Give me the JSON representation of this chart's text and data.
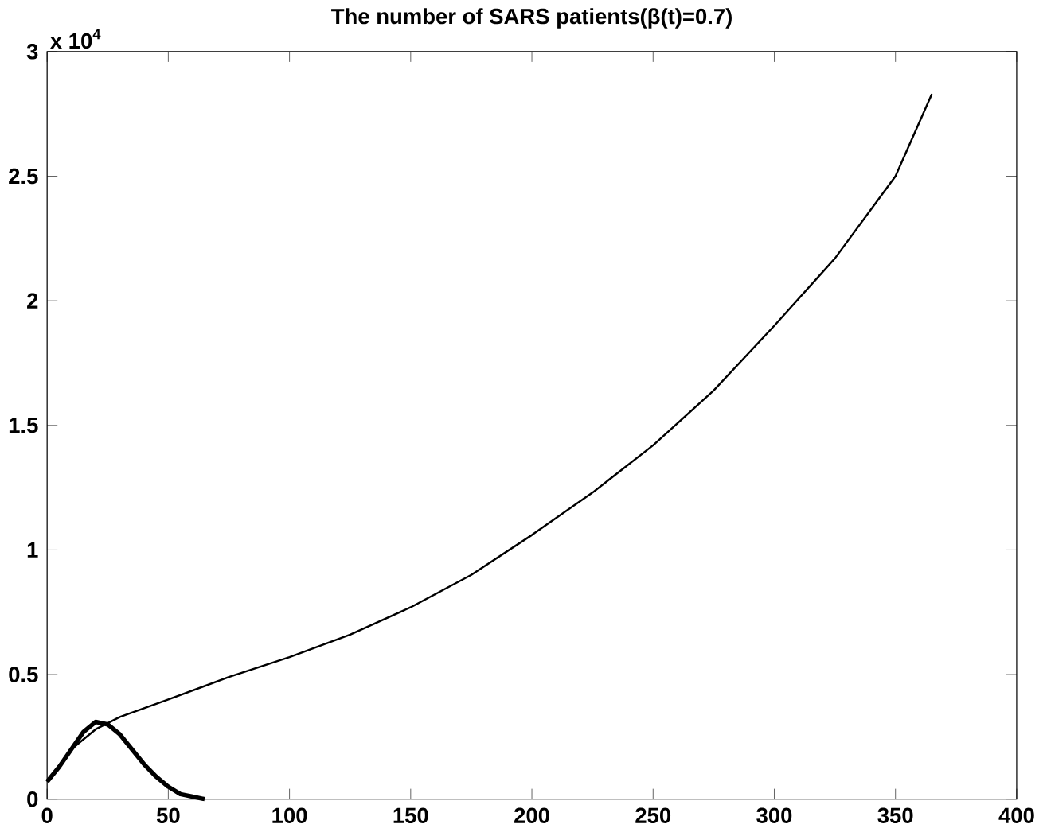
{
  "chart_data": {
    "type": "line",
    "title": "The number of SARS patients(β(t)=0.7)",
    "annotations": [
      "x 10$^{4}$"
    ],
    "xlim": [
      0,
      400
    ],
    "xticks": [
      0,
      50,
      100,
      150,
      200,
      250,
      300,
      350,
      400
    ],
    "ylim": [
      0,
      3
    ],
    "yticks": [
      0,
      0.5,
      1,
      1.5,
      2,
      2.5,
      3
    ],
    "grid": false,
    "line_style": "solid",
    "marker": "none",
    "series": [
      {
        "color": "#000000",
        "x": [
          0,
          10,
          20,
          30,
          50,
          75,
          100,
          125,
          150,
          175,
          200,
          225,
          250,
          275,
          300,
          325,
          350,
          365
        ],
        "values": [
          0.07,
          0.2,
          0.28,
          0.33,
          0.4,
          0.49,
          0.57,
          0.66,
          0.77,
          0.9,
          1.06,
          1.23,
          1.42,
          1.64,
          1.9,
          2.17,
          2.5,
          2.83
        ]
      },
      {
        "color": "#000000",
        "x": [
          0,
          5,
          10,
          15,
          20,
          25,
          30,
          35,
          40,
          45,
          50,
          55,
          60,
          65
        ],
        "values": [
          0.07,
          0.13,
          0.2,
          0.27,
          0.31,
          0.3,
          0.26,
          0.2,
          0.14,
          0.09,
          0.05,
          0.02,
          0.01,
          0
        ]
      }
    ]
  }
}
